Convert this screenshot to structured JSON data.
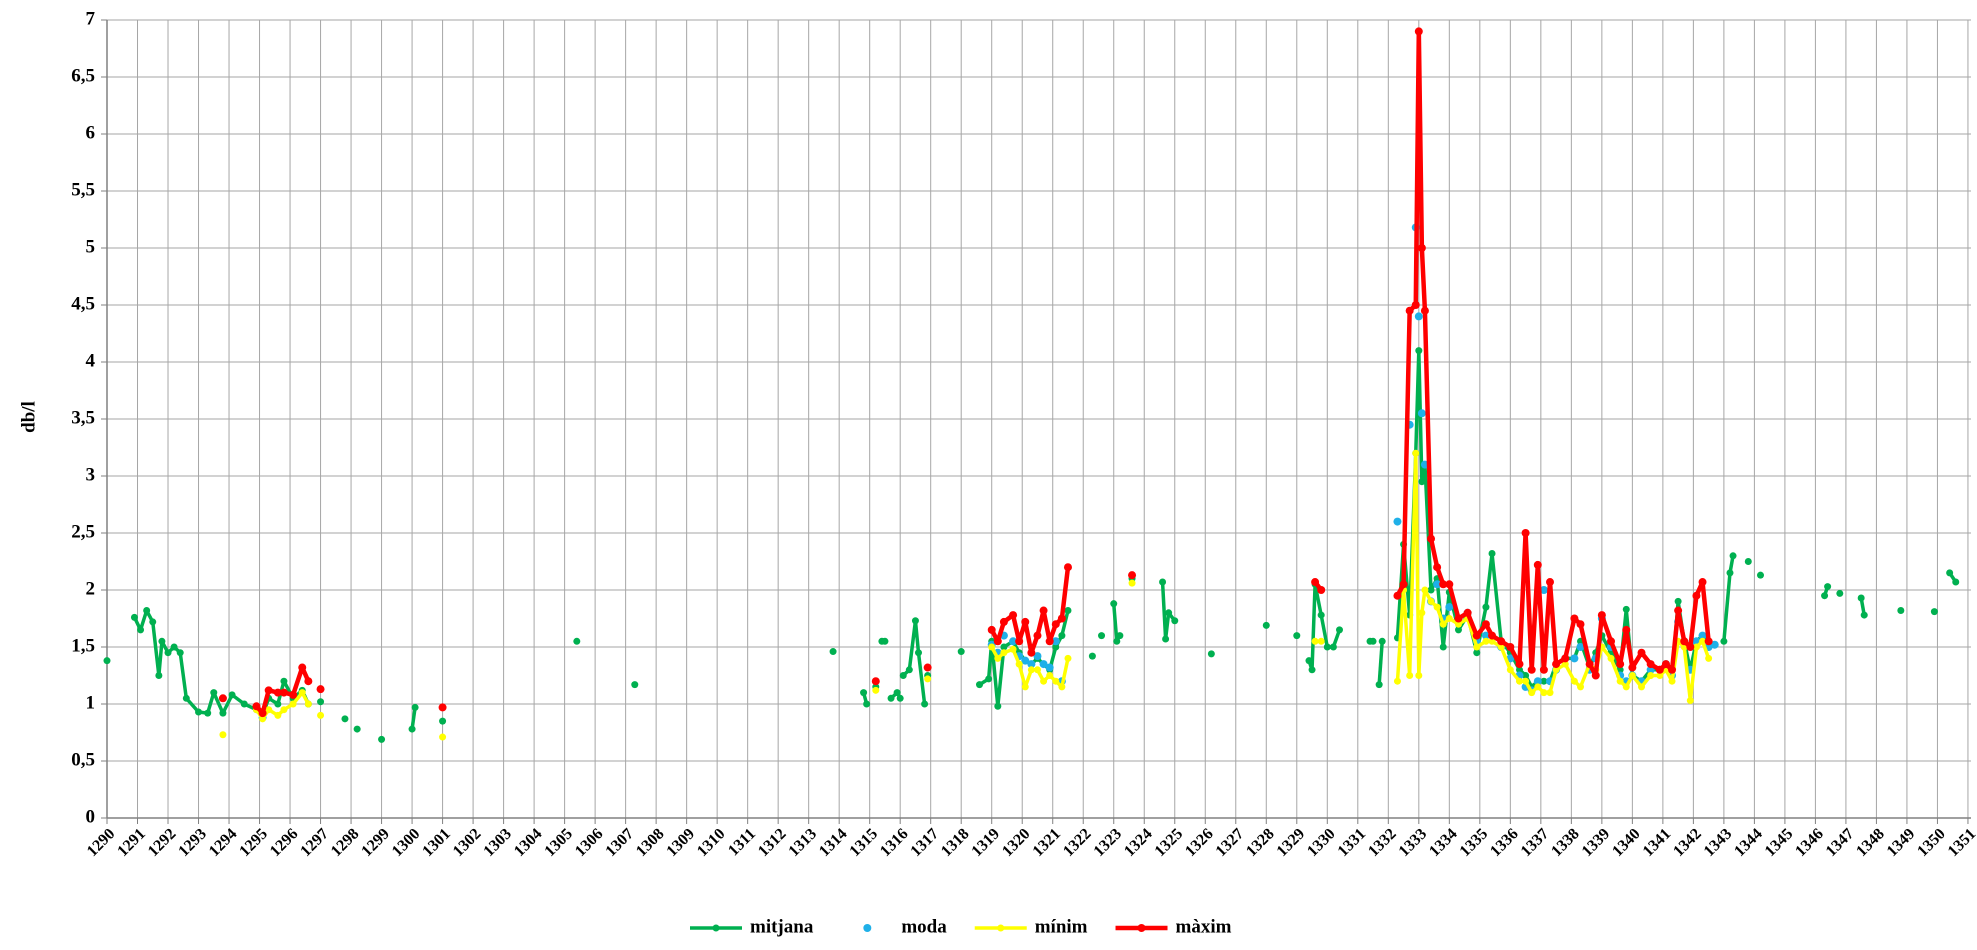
{
  "chart_data": {
    "type": "line",
    "ylabel": "db/l",
    "xlim": [
      1290,
      1351.1
    ],
    "xticks": [
      1290,
      1291,
      1292,
      1293,
      1294,
      1295,
      1296,
      1297,
      1298,
      1299,
      1300,
      1301,
      1302,
      1303,
      1304,
      1305,
      1306,
      1307,
      1308,
      1309,
      1310,
      1311,
      1312,
      1313,
      1314,
      1315,
      1316,
      1317,
      1318,
      1319,
      1320,
      1321,
      1322,
      1323,
      1324,
      1325,
      1326,
      1327,
      1328,
      1329,
      1330,
      1331,
      1332,
      1333,
      1334,
      1335,
      1336,
      1337,
      1338,
      1339,
      1340,
      1341,
      1342,
      1343,
      1344,
      1345,
      1346,
      1347,
      1348,
      1349,
      1350,
      1351
    ],
    "ylim": [
      0,
      7
    ],
    "yticks": [
      0,
      {
        "value": 0.5,
        "label": "0,5"
      },
      1,
      {
        "value": 1.5,
        "label": "1,5"
      },
      2,
      {
        "value": 2.5,
        "label": "2,5"
      },
      3,
      {
        "value": 3.5,
        "label": "3,5"
      },
      4,
      {
        "value": 4.5,
        "label": "4,5"
      },
      5,
      {
        "value": 5.5,
        "label": "5,5"
      },
      6,
      {
        "value": 6.5,
        "label": "6,5"
      },
      7
    ],
    "grid": true,
    "legend": "bottom",
    "x": [
      1290,
      1290.5,
      1290.9,
      1291.1,
      1291.3,
      1291.5,
      1291.7,
      1291.8,
      1292,
      1292.2,
      1292.4,
      1292.6,
      1293,
      1293.3,
      1293.5,
      1293.8,
      1294.1,
      1294.5,
      1294.9,
      1295.1,
      1295.3,
      1295.6,
      1295.8,
      1296.1,
      1296.4,
      1296.6,
      1296.8,
      1297,
      1297.4,
      1297.8,
      1298,
      1298.2,
      1298.6,
      1299,
      1299.5,
      1300,
      1300.1,
      1300.6,
      1301,
      1303,
      1305.4,
      1306.5,
      1307.3,
      1310,
      1313.8,
      1314.4,
      1314.8,
      1314.9,
      1315.1,
      1315.2,
      1315.3,
      1315.4,
      1315.5,
      1315.6,
      1315.7,
      1315.9,
      1316,
      1316.05,
      1316.1,
      1316.3,
      1316.5,
      1316.6,
      1316.8,
      1316.85,
      1316.9,
      1317.5,
      1318,
      1318.3,
      1318.6,
      1318.9,
      1319,
      1319.2,
      1319.4,
      1319.7,
      1319.9,
      1320.1,
      1320.3,
      1320.5,
      1320.7,
      1320.9,
      1321.1,
      1321.3,
      1321.5,
      1321.8,
      1322.3,
      1322.5,
      1322.6,
      1322.8,
      1323,
      1323.1,
      1323.2,
      1323.4,
      1323.6,
      1324.2,
      1324.6,
      1324.7,
      1324.8,
      1325,
      1325.5,
      1326.2,
      1327,
      1328,
      1328.5,
      1329,
      1329.2,
      1329.4,
      1329.5,
      1329.6,
      1329.8,
      1330,
      1330.2,
      1330.4,
      1330.8,
      1331.4,
      1331.5,
      1331.6,
      1331.7,
      1331.8,
      1332,
      1332.3,
      1332.5,
      1332.7,
      1332.9,
      1333,
      1333.1,
      1333.2,
      1333.4,
      1333.6,
      1333.8,
      1334,
      1334.3,
      1334.6,
      1334.9,
      1335.2,
      1335.4,
      1335.7,
      1336,
      1336.3,
      1336.5,
      1336.7,
      1336.9,
      1337.1,
      1337.3,
      1337.5,
      1337.8,
      1338.1,
      1338.3,
      1338.6,
      1338.8,
      1339,
      1339.3,
      1339.6,
      1339.8,
      1340,
      1340.3,
      1340.6,
      1340.9,
      1341.1,
      1341.3,
      1341.5,
      1341.7,
      1341.9,
      1342.1,
      1342.3,
      1342.5,
      1342.7,
      1342.9,
      1343,
      1343.2,
      1343.3,
      1343.6,
      1343.8,
      1344,
      1344.2,
      1345,
      1346.3,
      1346.4,
      1346.6,
      1346.8,
      1347.1,
      1347.5,
      1347.6,
      1348,
      1348.8,
      1349.3,
      1349.9,
      1350.1,
      1350.4,
      1350.6
    ],
    "series": [
      {
        "name": "mitjana",
        "color": "#00b050",
        "line": true,
        "line_width": 3.5,
        "marker_size": 3.5,
        "values": [
          1.38,
          null,
          1.76,
          1.65,
          1.82,
          1.72,
          1.25,
          1.55,
          1.45,
          1.5,
          1.45,
          1.05,
          0.93,
          0.92,
          1.1,
          0.92,
          1.08,
          1.0,
          0.95,
          0.9,
          1.05,
          1.0,
          1.2,
          1.05,
          1.12,
          1.0,
          null,
          1.02,
          null,
          0.87,
          null,
          0.78,
          null,
          0.69,
          null,
          0.78,
          0.97,
          null,
          0.85,
          null,
          1.55,
          null,
          1.17,
          null,
          1.46,
          null,
          1.1,
          1.0,
          null,
          1.15,
          null,
          1.55,
          1.55,
          null,
          1.05,
          1.1,
          1.05,
          null,
          1.25,
          1.3,
          1.73,
          1.45,
          1.0,
          null,
          1.25,
          null,
          1.46,
          null,
          1.17,
          1.22,
          1.55,
          0.98,
          1.5,
          1.55,
          1.45,
          1.38,
          1.35,
          1.4,
          1.35,
          1.3,
          1.5,
          1.6,
          1.82,
          null,
          1.42,
          null,
          1.6,
          null,
          1.88,
          1.55,
          1.6,
          null,
          2.1,
          null,
          2.07,
          1.57,
          1.8,
          1.73,
          null,
          1.44,
          null,
          1.69,
          null,
          1.6,
          null,
          1.38,
          1.3,
          2.05,
          1.78,
          1.5,
          1.5,
          1.65,
          null,
          1.55,
          1.55,
          null,
          1.17,
          1.55,
          null,
          1.58,
          2.4,
          1.78,
          3.2,
          4.1,
          2.95,
          3.1,
          2.0,
          2.1,
          1.5,
          1.98,
          1.65,
          1.78,
          1.45,
          1.85,
          2.32,
          1.55,
          1.45,
          1.3,
          1.25,
          1.15,
          1.2,
          1.2,
          1.2,
          1.35,
          1.4,
          1.4,
          1.55,
          1.32,
          1.45,
          1.6,
          1.45,
          1.3,
          1.83,
          1.25,
          1.2,
          1.3,
          1.3,
          1.35,
          1.25,
          1.9,
          1.55,
          1.3,
          1.55,
          1.6,
          1.55,
          1.52,
          null,
          1.55,
          2.15,
          2.3,
          null,
          2.25,
          null,
          2.13,
          null,
          1.95,
          2.03,
          null,
          1.97,
          null,
          1.93,
          1.78,
          null,
          1.82,
          null,
          1.81,
          null,
          2.15,
          2.07
        ]
      },
      {
        "name": "moda",
        "color": "#1fb0e8",
        "line": false,
        "line_width": 0,
        "marker_size": 4,
        "values": [
          null,
          null,
          null,
          null,
          null,
          null,
          null,
          null,
          null,
          null,
          null,
          null,
          null,
          null,
          null,
          null,
          null,
          null,
          null,
          0.88,
          null,
          null,
          null,
          null,
          null,
          null,
          null,
          null,
          null,
          null,
          null,
          null,
          null,
          null,
          null,
          null,
          null,
          null,
          null,
          null,
          null,
          null,
          null,
          null,
          null,
          null,
          null,
          null,
          null,
          null,
          null,
          null,
          null,
          null,
          null,
          null,
          null,
          null,
          null,
          null,
          null,
          null,
          null,
          null,
          null,
          null,
          null,
          null,
          null,
          null,
          1.52,
          1.45,
          1.6,
          1.55,
          1.42,
          1.38,
          1.35,
          1.42,
          1.35,
          1.32,
          1.55,
          1.2,
          null,
          null,
          null,
          null,
          null,
          null,
          null,
          null,
          null,
          null,
          null,
          null,
          null,
          null,
          null,
          null,
          null,
          null,
          null,
          null,
          null,
          null,
          null,
          null,
          null,
          null,
          null,
          null,
          null,
          null,
          null,
          null,
          null,
          null,
          null,
          null,
          null,
          2.6,
          null,
          3.45,
          5.18,
          4.4,
          3.55,
          3.1,
          1.9,
          2.05,
          1.75,
          1.85,
          1.75,
          1.8,
          1.55,
          1.6,
          null,
          1.5,
          1.4,
          1.25,
          1.15,
          1.12,
          1.2,
          2.0,
          1.2,
          1.3,
          1.4,
          1.4,
          1.5,
          1.3,
          1.4,
          1.75,
          1.5,
          1.25,
          1.2,
          1.25,
          1.2,
          1.3,
          1.3,
          1.35,
          1.25,
          1.72,
          1.55,
          1.3,
          1.55,
          1.6,
          1.5,
          1.52,
          null,
          null,
          null,
          null,
          null,
          null,
          null,
          null,
          null,
          null,
          null,
          null,
          null,
          null,
          null,
          null,
          null,
          null,
          null,
          null,
          null,
          null,
          null
        ]
      },
      {
        "name": "mínim",
        "color": "#ffff00",
        "line": true,
        "line_width": 3.5,
        "marker_size": 3.5,
        "values": [
          null,
          null,
          null,
          null,
          null,
          null,
          null,
          null,
          null,
          null,
          null,
          null,
          null,
          null,
          null,
          0.73,
          null,
          null,
          0.95,
          0.87,
          0.95,
          0.9,
          0.95,
          1.0,
          1.1,
          1.0,
          null,
          0.9,
          null,
          null,
          null,
          null,
          null,
          null,
          null,
          null,
          null,
          null,
          0.71,
          null,
          null,
          null,
          null,
          null,
          null,
          null,
          null,
          null,
          null,
          1.12,
          null,
          null,
          null,
          null,
          null,
          null,
          null,
          null,
          null,
          null,
          null,
          null,
          null,
          null,
          1.22,
          null,
          null,
          null,
          null,
          null,
          1.5,
          1.4,
          1.45,
          1.48,
          1.35,
          1.15,
          1.3,
          1.3,
          1.2,
          1.25,
          1.2,
          1.15,
          1.4,
          null,
          null,
          null,
          null,
          null,
          null,
          null,
          null,
          null,
          2.06,
          null,
          null,
          null,
          null,
          null,
          null,
          null,
          null,
          null,
          null,
          null,
          null,
          null,
          null,
          1.55,
          1.55,
          null,
          null,
          null,
          null,
          null,
          null,
          null,
          null,
          null,
          null,
          1.2,
          2.0,
          1.25,
          3.2,
          1.25,
          1.8,
          2.0,
          1.9,
          1.85,
          1.7,
          1.75,
          1.7,
          1.75,
          1.5,
          1.55,
          1.55,
          1.5,
          1.3,
          1.2,
          1.2,
          1.1,
          1.15,
          1.1,
          1.1,
          1.3,
          1.35,
          1.2,
          1.15,
          1.35,
          1.3,
          1.5,
          1.4,
          1.2,
          1.15,
          1.25,
          1.15,
          1.25,
          1.25,
          1.3,
          1.2,
          1.55,
          1.5,
          1.03,
          1.5,
          1.55,
          1.4,
          null,
          null,
          null,
          null,
          null,
          null,
          null,
          null,
          null,
          null,
          null,
          null,
          null,
          null,
          null,
          null,
          null,
          null,
          null,
          null,
          null,
          null,
          null,
          null
        ]
      },
      {
        "name": "màxim",
        "color": "#ff0000",
        "line": true,
        "line_width": 4.5,
        "marker_size": 4,
        "values": [
          null,
          null,
          null,
          null,
          null,
          null,
          null,
          null,
          null,
          null,
          null,
          null,
          null,
          null,
          null,
          1.05,
          null,
          null,
          0.98,
          0.92,
          1.12,
          1.1,
          1.1,
          1.08,
          1.32,
          1.2,
          null,
          1.13,
          null,
          null,
          null,
          null,
          null,
          null,
          null,
          null,
          null,
          null,
          0.97,
          null,
          null,
          null,
          null,
          null,
          null,
          null,
          null,
          null,
          null,
          1.2,
          null,
          null,
          null,
          null,
          null,
          null,
          null,
          null,
          null,
          null,
          null,
          null,
          null,
          null,
          1.32,
          null,
          null,
          null,
          null,
          null,
          1.65,
          1.55,
          1.72,
          1.78,
          1.55,
          1.72,
          1.45,
          1.6,
          1.82,
          1.55,
          1.7,
          1.75,
          2.2,
          null,
          null,
          null,
          null,
          null,
          null,
          null,
          null,
          null,
          2.13,
          null,
          null,
          null,
          null,
          null,
          null,
          null,
          null,
          null,
          null,
          null,
          null,
          null,
          null,
          2.07,
          2.0,
          null,
          null,
          null,
          null,
          null,
          null,
          null,
          null,
          null,
          null,
          1.95,
          2.05,
          4.45,
          4.5,
          6.9,
          5.0,
          4.45,
          2.45,
          2.2,
          2.05,
          2.05,
          1.75,
          1.8,
          1.6,
          1.7,
          1.6,
          1.55,
          1.5,
          1.35,
          2.5,
          1.3,
          2.22,
          1.3,
          2.07,
          1.35,
          1.4,
          1.75,
          1.7,
          1.35,
          1.25,
          1.78,
          1.55,
          1.35,
          1.65,
          1.32,
          1.45,
          1.35,
          1.3,
          1.35,
          1.3,
          1.82,
          1.55,
          1.5,
          1.95,
          2.07,
          1.55,
          null,
          null,
          null,
          null,
          null,
          null,
          null,
          null,
          null,
          null,
          null,
          null,
          null,
          null,
          null,
          null,
          null,
          null,
          null,
          null,
          null,
          null,
          null,
          null
        ]
      }
    ]
  }
}
